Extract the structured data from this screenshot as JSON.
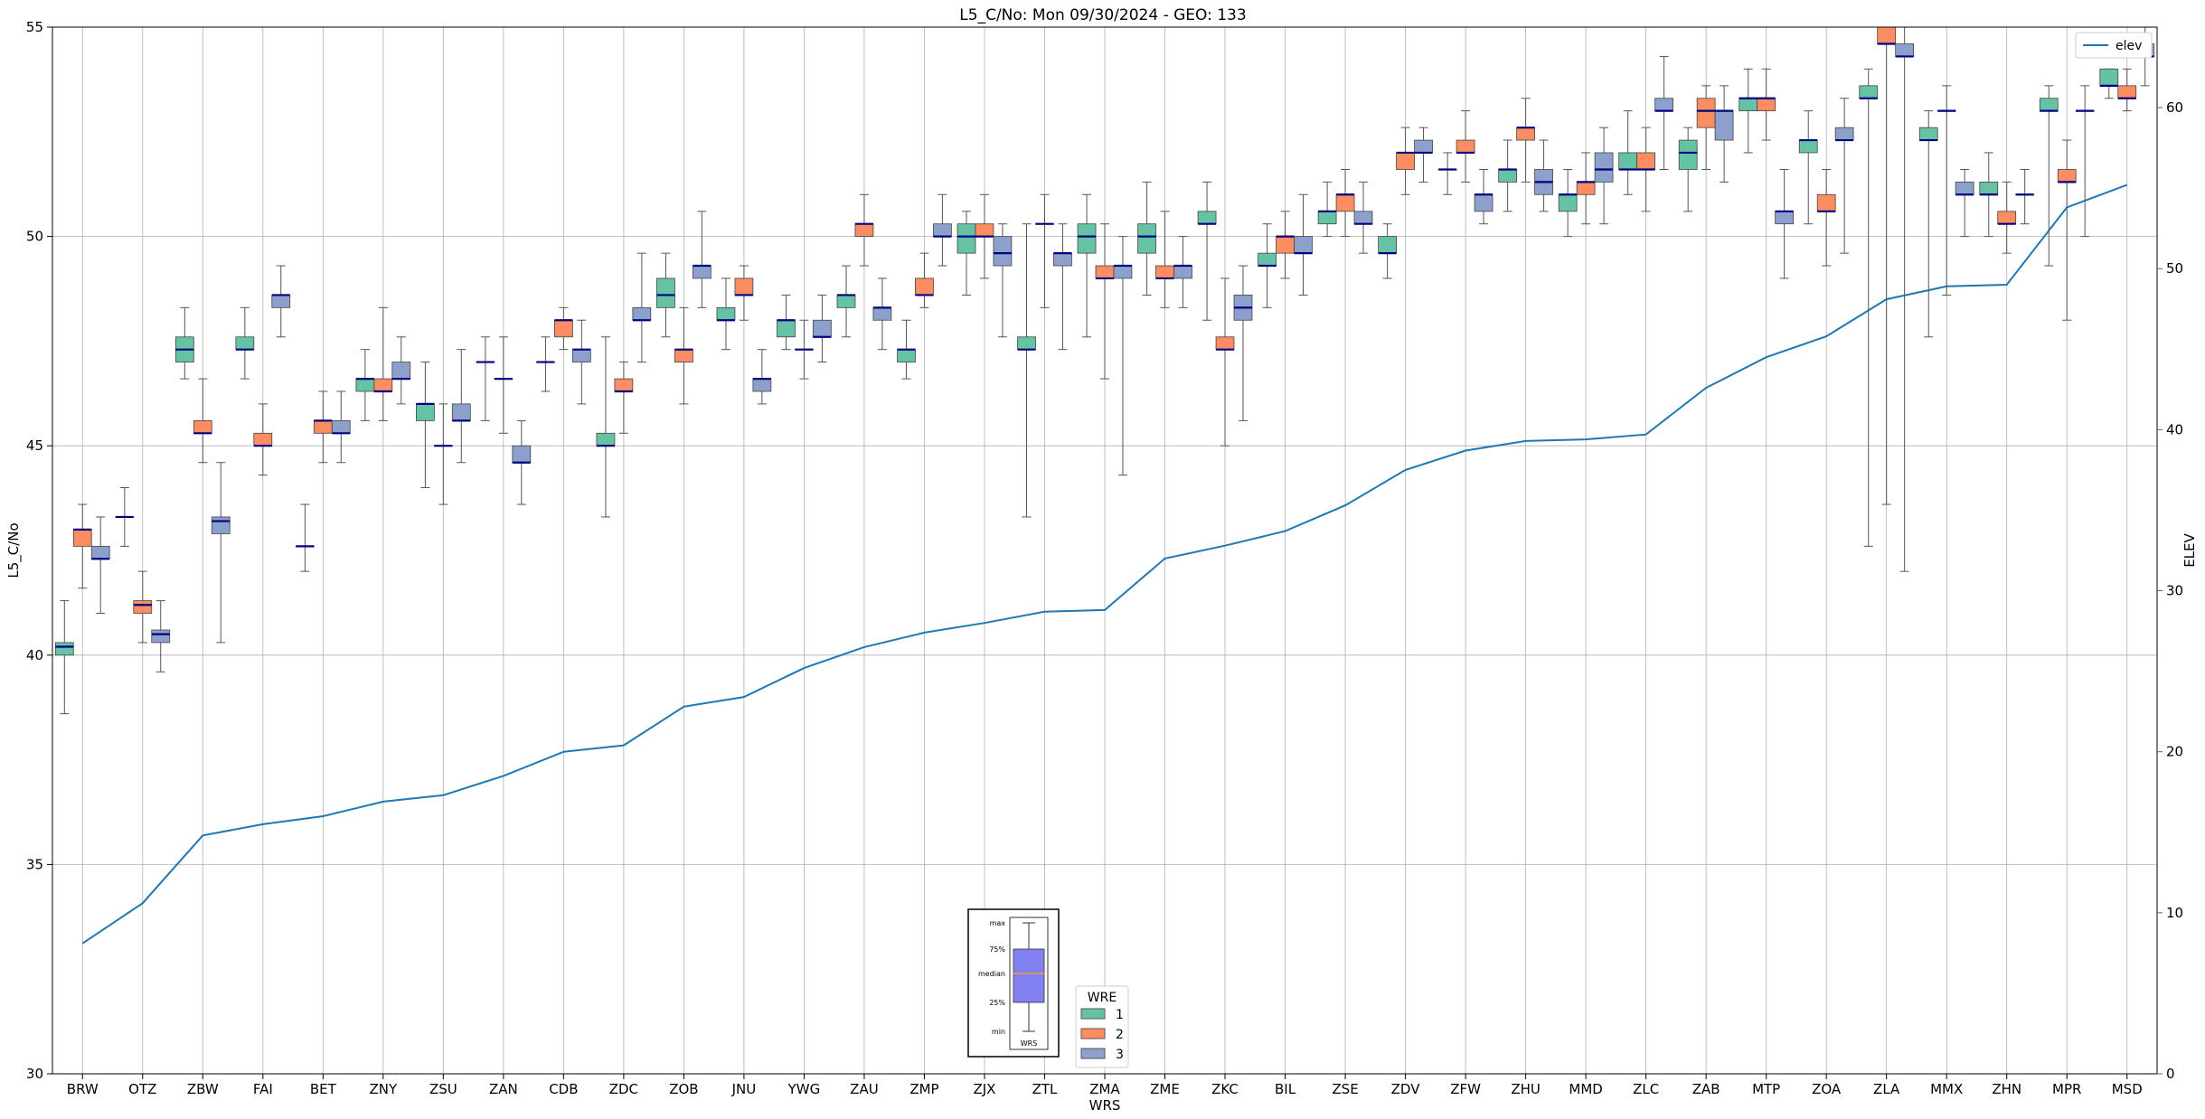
{
  "chart_data": {
    "type": "box",
    "title": "L5_C/No: Mon 09/30/2024 - GEO: 133",
    "xlabel": "WRS",
    "ylabel": "L5_C/No",
    "y2label": "ELEV",
    "ylim": [
      30,
      55
    ],
    "y2lim": [
      0,
      65
    ],
    "yticks": [
      30,
      35,
      40,
      45,
      50,
      55
    ],
    "y2ticks": [
      0,
      10,
      20,
      30,
      40,
      50,
      60
    ],
    "grid": true,
    "colors": {
      "1": "#66c2a5",
      "2": "#fc8d62",
      "3": "#8da0cb",
      "median": "#000080",
      "elev": "#1f77b4",
      "whisker": "#555555"
    },
    "categories": [
      "BRW",
      "OTZ",
      "ZBW",
      "FAI",
      "BET",
      "ZNY",
      "ZSU",
      "ZAN",
      "CDB",
      "ZDC",
      "ZOB",
      "JNU",
      "YWG",
      "ZAU",
      "ZMP",
      "ZJX",
      "ZTL",
      "ZMA",
      "ZME",
      "ZKC",
      "BIL",
      "ZSE",
      "ZDV",
      "ZFW",
      "ZHU",
      "MMD",
      "ZLC",
      "ZAB",
      "MTP",
      "ZOA",
      "ZLA",
      "MMX",
      "ZHN",
      "MPR",
      "MSD"
    ],
    "elev": [
      8.1,
      10.6,
      14.8,
      15.5,
      16.0,
      16.9,
      17.3,
      18.5,
      20.0,
      20.4,
      22.8,
      23.4,
      25.2,
      26.5,
      27.4,
      28.0,
      28.7,
      28.8,
      32.0,
      32.8,
      33.7,
      35.3,
      37.5,
      38.7,
      39.3,
      39.4,
      39.7,
      42.6,
      44.5,
      45.8,
      48.1,
      48.9,
      49.0,
      53.8,
      55.2
    ],
    "boxes": [
      [
        [
          38.6,
          40.0,
          40.2,
          40.3,
          41.3
        ],
        [
          41.6,
          42.6,
          43.0,
          43.0,
          43.6
        ],
        [
          41.0,
          42.3,
          42.3,
          42.6,
          43.3
        ]
      ],
      [
        [
          42.6,
          43.3,
          43.3,
          43.3,
          44.0
        ],
        [
          40.3,
          41.0,
          41.2,
          41.3,
          42.0
        ],
        [
          39.6,
          40.3,
          40.5,
          40.6,
          41.3
        ]
      ],
      [
        [
          46.6,
          47.0,
          47.3,
          47.6,
          48.3
        ],
        [
          44.6,
          45.3,
          45.3,
          45.6,
          46.6
        ],
        [
          40.3,
          42.9,
          43.2,
          43.3,
          44.6
        ]
      ],
      [
        [
          46.6,
          47.3,
          47.3,
          47.6,
          48.3
        ],
        [
          44.3,
          45.0,
          45.0,
          45.3,
          46.0
        ],
        [
          47.6,
          48.3,
          48.6,
          48.6,
          49.3
        ]
      ],
      [
        [
          42.0,
          42.6,
          42.6,
          42.6,
          43.6
        ],
        [
          44.6,
          45.3,
          45.6,
          45.6,
          46.3
        ],
        [
          44.6,
          45.3,
          45.3,
          45.6,
          46.3
        ]
      ],
      [
        [
          45.6,
          46.3,
          46.6,
          46.6,
          47.3
        ],
        [
          45.6,
          46.3,
          46.3,
          46.6,
          48.3
        ],
        [
          46.0,
          46.6,
          46.6,
          47.0,
          47.6
        ]
      ],
      [
        [
          44.0,
          45.6,
          46.0,
          46.0,
          47.0
        ],
        [
          43.6,
          45.0,
          45.0,
          45.0,
          46.0
        ],
        [
          44.6,
          45.6,
          45.6,
          46.0,
          47.3
        ]
      ],
      [
        [
          45.6,
          47.0,
          47.0,
          47.0,
          47.6
        ],
        [
          45.3,
          46.6,
          46.6,
          46.6,
          47.6
        ],
        [
          43.6,
          44.6,
          44.6,
          45.0,
          45.6
        ]
      ],
      [
        [
          46.3,
          47.0,
          47.0,
          47.0,
          47.6
        ],
        [
          47.3,
          47.6,
          48.0,
          48.0,
          48.3
        ],
        [
          46.0,
          47.0,
          47.3,
          47.3,
          48.0
        ]
      ],
      [
        [
          43.3,
          45.0,
          45.0,
          45.3,
          47.6
        ],
        [
          45.3,
          46.3,
          46.3,
          46.6,
          47.0
        ],
        [
          47.0,
          48.0,
          48.0,
          48.3,
          49.6
        ]
      ],
      [
        [
          47.6,
          48.3,
          48.6,
          49.0,
          49.6
        ],
        [
          46.0,
          47.0,
          47.3,
          47.3,
          48.3
        ],
        [
          48.3,
          49.0,
          49.3,
          49.3,
          50.6
        ]
      ],
      [
        [
          47.3,
          48.0,
          48.0,
          48.3,
          49.0
        ],
        [
          48.0,
          48.6,
          48.6,
          49.0,
          49.3
        ],
        [
          46.0,
          46.3,
          46.6,
          46.6,
          47.3
        ]
      ],
      [
        [
          47.3,
          47.6,
          48.0,
          48.0,
          48.6
        ],
        [
          46.6,
          47.3,
          47.3,
          47.3,
          48.0
        ],
        [
          47.0,
          47.6,
          47.6,
          48.0,
          48.6
        ]
      ],
      [
        [
          47.6,
          48.3,
          48.6,
          48.6,
          49.3
        ],
        [
          49.3,
          50.0,
          50.3,
          50.3,
          51.0
        ],
        [
          47.3,
          48.0,
          48.3,
          48.3,
          49.0
        ]
      ],
      [
        [
          46.6,
          47.0,
          47.3,
          47.3,
          48.0
        ],
        [
          48.3,
          48.6,
          48.6,
          49.0,
          49.6
        ],
        [
          49.3,
          50.0,
          50.0,
          50.3,
          51.0
        ]
      ],
      [
        [
          48.6,
          49.6,
          50.0,
          50.3,
          50.6
        ],
        [
          49.0,
          50.0,
          50.0,
          50.3,
          51.0
        ],
        [
          47.6,
          49.3,
          49.6,
          50.0,
          50.3
        ]
      ],
      [
        [
          43.3,
          47.3,
          47.3,
          47.6,
          50.3
        ],
        [
          48.3,
          50.3,
          50.3,
          50.3,
          51.0
        ],
        [
          47.3,
          49.3,
          49.6,
          49.6,
          50.3
        ]
      ],
      [
        [
          47.6,
          49.6,
          50.0,
          50.3,
          51.0
        ],
        [
          46.6,
          49.0,
          49.0,
          49.3,
          50.3
        ],
        [
          44.3,
          49.0,
          49.3,
          49.3,
          50.0
        ]
      ],
      [
        [
          48.6,
          49.6,
          50.0,
          50.3,
          51.3
        ],
        [
          48.3,
          49.0,
          49.0,
          49.3,
          50.6
        ],
        [
          48.3,
          49.0,
          49.3,
          49.3,
          50.0
        ]
      ],
      [
        [
          48.0,
          50.3,
          50.3,
          50.6,
          51.3
        ],
        [
          45.0,
          47.3,
          47.3,
          47.6,
          49.0
        ],
        [
          45.6,
          48.0,
          48.3,
          48.6,
          49.3
        ]
      ],
      [
        [
          48.3,
          49.3,
          49.3,
          49.6,
          50.3
        ],
        [
          49.0,
          49.6,
          50.0,
          50.0,
          50.6
        ],
        [
          48.6,
          49.6,
          49.6,
          50.0,
          51.0
        ]
      ],
      [
        [
          50.0,
          50.3,
          50.6,
          50.6,
          51.3
        ],
        [
          50.0,
          50.6,
          51.0,
          51.0,
          51.6
        ],
        [
          49.6,
          50.3,
          50.3,
          50.6,
          51.3
        ]
      ],
      [
        [
          49.0,
          49.6,
          49.6,
          50.0,
          50.3
        ],
        [
          51.0,
          51.6,
          52.0,
          52.0,
          52.6
        ],
        [
          51.3,
          52.0,
          52.0,
          52.3,
          52.6
        ]
      ],
      [
        [
          51.0,
          51.6,
          51.6,
          51.6,
          52.0
        ],
        [
          51.3,
          52.0,
          52.0,
          52.3,
          53.0
        ],
        [
          50.3,
          50.6,
          51.0,
          51.0,
          51.6
        ]
      ],
      [
        [
          50.6,
          51.3,
          51.6,
          51.6,
          52.3
        ],
        [
          51.3,
          52.3,
          52.6,
          52.6,
          53.3
        ],
        [
          50.6,
          51.0,
          51.3,
          51.6,
          52.3
        ]
      ],
      [
        [
          50.0,
          50.6,
          51.0,
          51.0,
          51.6
        ],
        [
          50.3,
          51.0,
          51.3,
          51.3,
          52.0
        ],
        [
          50.3,
          51.3,
          51.6,
          52.0,
          52.6
        ]
      ],
      [
        [
          51.0,
          51.6,
          51.6,
          52.0,
          53.0
        ],
        [
          50.6,
          51.6,
          51.6,
          52.0,
          52.6
        ],
        [
          51.6,
          53.0,
          53.0,
          53.3,
          54.3
        ]
      ],
      [
        [
          50.6,
          51.6,
          52.0,
          52.3,
          52.6
        ],
        [
          51.6,
          52.6,
          53.0,
          53.3,
          53.6
        ],
        [
          51.3,
          52.3,
          53.0,
          53.0,
          53.6
        ]
      ],
      [
        [
          52.0,
          53.0,
          53.3,
          53.3,
          54.0
        ],
        [
          52.3,
          53.0,
          53.3,
          53.3,
          54.0
        ],
        [
          49.0,
          50.3,
          50.6,
          50.6,
          51.6
        ]
      ],
      [
        [
          50.3,
          52.0,
          52.3,
          52.3,
          53.0
        ],
        [
          49.3,
          50.6,
          50.6,
          51.0,
          51.6
        ],
        [
          49.6,
          52.3,
          52.3,
          52.6,
          53.3
        ]
      ],
      [
        [
          42.6,
          53.3,
          53.3,
          53.6,
          54.0
        ],
        [
          43.6,
          54.6,
          54.6,
          55.0,
          55.0
        ],
        [
          42.0,
          54.3,
          54.3,
          54.6,
          55.0
        ]
      ],
      [
        [
          47.6,
          52.3,
          52.3,
          52.6,
          53.0
        ],
        [
          48.6,
          53.0,
          53.0,
          53.0,
          53.6
        ],
        [
          50.0,
          51.0,
          51.0,
          51.3,
          51.6
        ]
      ],
      [
        [
          50.0,
          51.0,
          51.0,
          51.3,
          52.0
        ],
        [
          49.6,
          50.3,
          50.3,
          50.6,
          51.3
        ],
        [
          50.3,
          51.0,
          51.0,
          51.0,
          51.6
        ]
      ],
      [
        [
          49.3,
          53.0,
          53.0,
          53.3,
          53.6
        ],
        [
          48.0,
          51.3,
          51.3,
          51.6,
          52.3
        ],
        [
          50.0,
          53.0,
          53.0,
          53.0,
          53.6
        ]
      ],
      [
        [
          53.3,
          53.6,
          53.6,
          54.0,
          54.0
        ],
        [
          53.0,
          53.3,
          53.3,
          53.6,
          54.0
        ],
        [
          53.6,
          54.3,
          54.3,
          54.6,
          55.0
        ]
      ]
    ],
    "legend": {
      "title": "WRE",
      "entries": [
        "1",
        "2",
        "3"
      ],
      "placement": "bottom-center"
    },
    "elev_legend": {
      "label": "elev",
      "placement": "top-right"
    },
    "inset": {
      "labels": [
        "max",
        "75%",
        "median",
        "25%",
        "min"
      ],
      "xlabel": "WRS",
      "box": [
        30.5,
        31.5,
        32.0,
        32.6,
        34.0
      ],
      "colors": {
        "box": "#8080f0",
        "median": "#f0a040"
      }
    }
  }
}
